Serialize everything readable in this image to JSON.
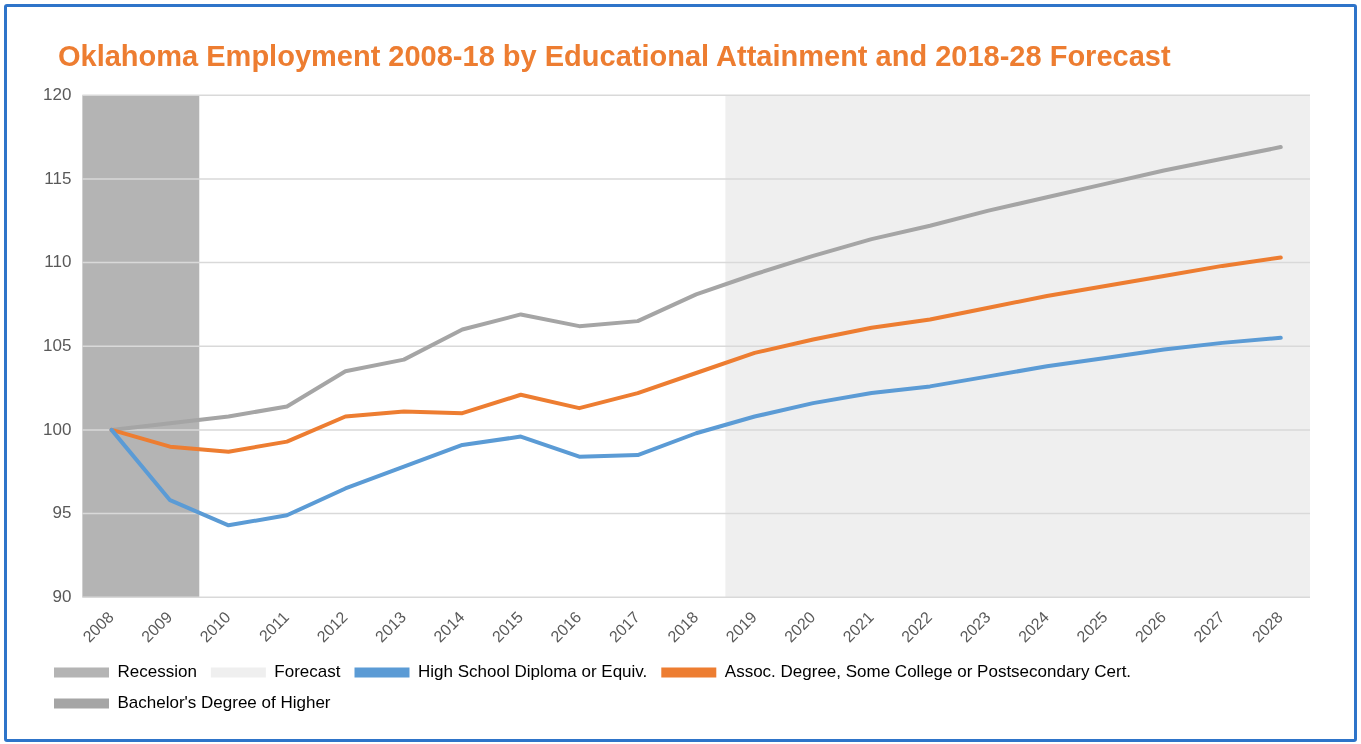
{
  "chart_data": {
    "type": "line",
    "title": "Oklahoma Employment 2008-18 by Educational Attainment and 2018-28 Forecast",
    "categories": [
      "2008",
      "2009",
      "2010",
      "2011",
      "2012",
      "2013",
      "2014",
      "2015",
      "2016",
      "2017",
      "2018",
      "2019",
      "2020",
      "2021",
      "2022",
      "2023",
      "2024",
      "2025",
      "2026",
      "2027",
      "2028"
    ],
    "series": [
      {
        "name": "High School Diploma or Equiv.",
        "color": "#5b9bd5",
        "values": [
          100,
          95.8,
          94.3,
          94.9,
          96.5,
          97.8,
          99.1,
          99.6,
          98.4,
          98.5,
          99.8,
          100.8,
          101.6,
          102.2,
          102.6,
          103.2,
          103.8,
          104.3,
          104.8,
          105.2,
          105.5
        ]
      },
      {
        "name": "Assoc. Degree, Some College or Postsecondary Cert.",
        "color": "#ed7d31",
        "values": [
          100,
          99.0,
          98.7,
          99.3,
          100.8,
          101.1,
          101.0,
          102.1,
          101.3,
          102.2,
          103.4,
          104.6,
          105.4,
          106.1,
          106.6,
          107.3,
          108.0,
          108.6,
          109.2,
          109.8,
          110.3
        ]
      },
      {
        "name": "Bachelor's Degree of Higher",
        "color": "#a5a5a5",
        "values": [
          100,
          100.4,
          100.8,
          101.4,
          103.5,
          104.2,
          106.0,
          106.9,
          106.2,
          106.5,
          108.1,
          109.3,
          110.4,
          111.4,
          112.2,
          113.1,
          113.9,
          114.7,
          115.5,
          116.2,
          116.9
        ]
      }
    ],
    "bands": [
      {
        "axis": "x",
        "from": "2008",
        "to": "2009",
        "label": "Recession",
        "color": "#b4b4b4"
      },
      {
        "axis": "x",
        "from": "2019",
        "to": "2028",
        "label": "Forecast",
        "color": "#efefef"
      }
    ],
    "ylim": [
      90,
      120
    ],
    "yticks": [
      90,
      95,
      100,
      105,
      110,
      115,
      120
    ],
    "grid": "y",
    "legend": "bottom",
    "marker": "none",
    "line_style": "solid"
  }
}
